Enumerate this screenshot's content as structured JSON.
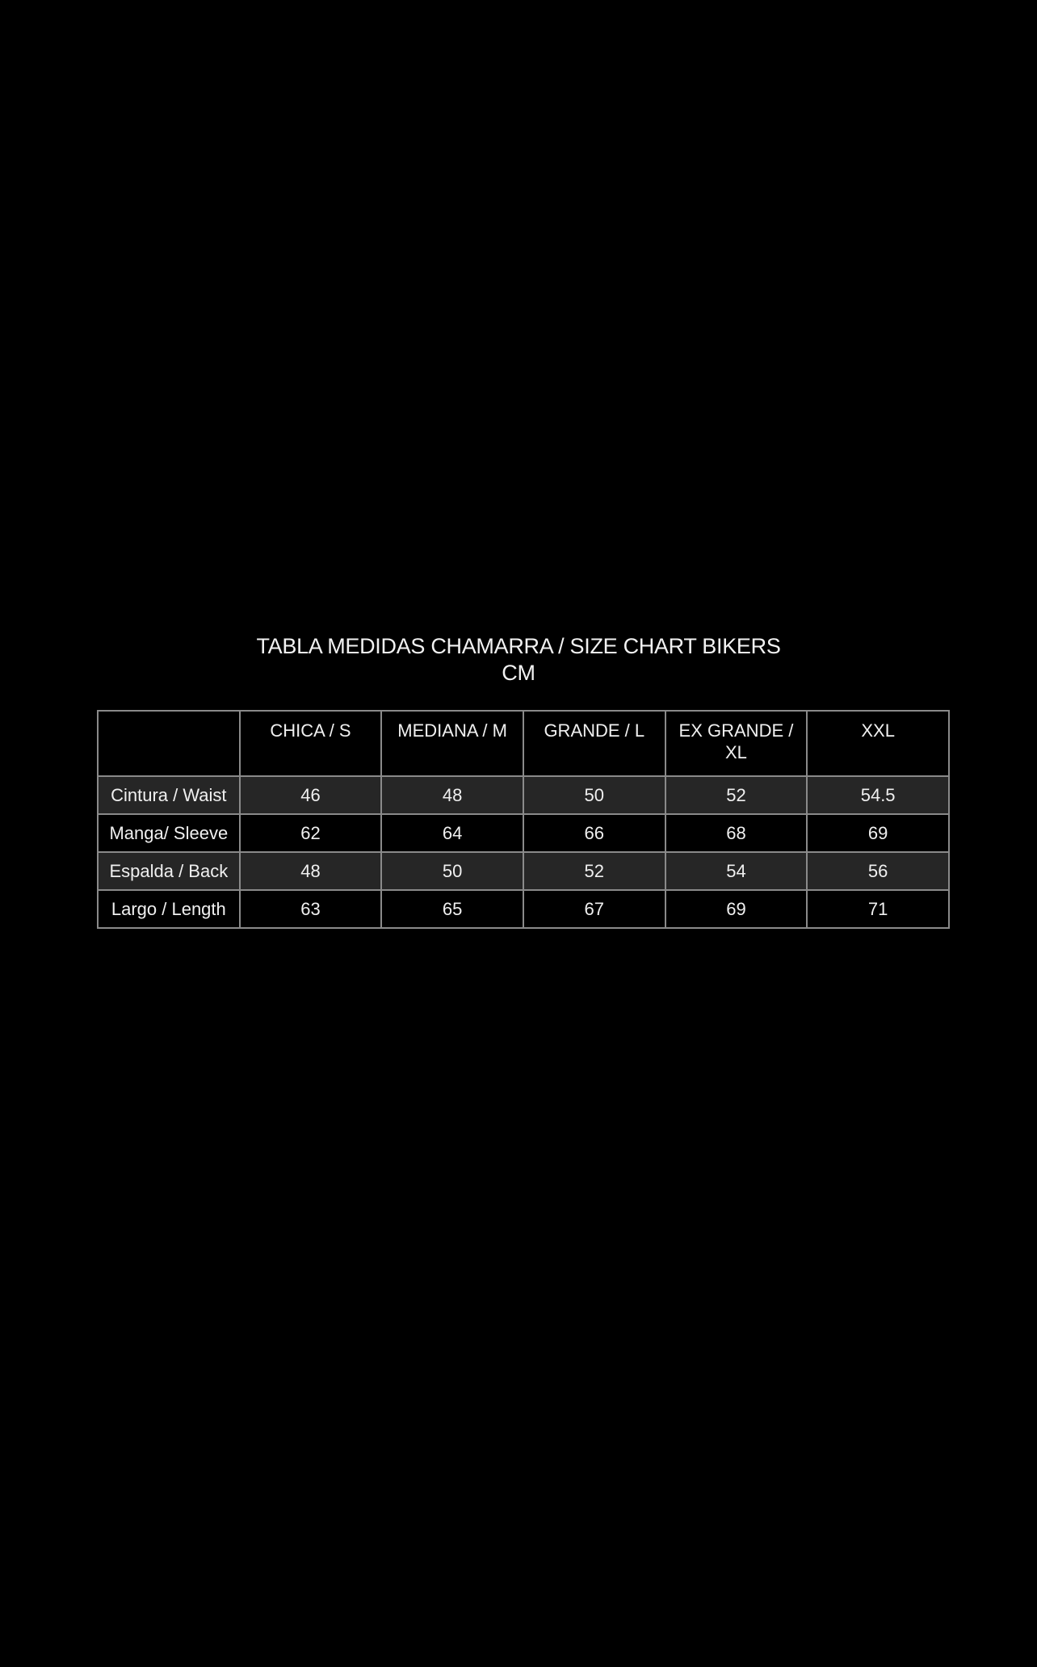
{
  "title": {
    "line1": "TABLA MEDIDAS CHAMARRA / SIZE CHART BIKERS",
    "line2": "CM"
  },
  "table": {
    "headers": [
      "",
      "CHICA / S",
      "MEDIANA / M",
      "GRANDE / L",
      "EX GRANDE / XL",
      "XXL"
    ],
    "rows": [
      {
        "label": "Cintura / Waist",
        "values": [
          "46",
          "48",
          "50",
          "52",
          "54.5"
        ]
      },
      {
        "label": "Manga/ Sleeve",
        "values": [
          "62",
          "64",
          "66",
          "68",
          "69"
        ]
      },
      {
        "label": "Espalda / Back",
        "values": [
          "48",
          "50",
          "52",
          "54",
          "56"
        ]
      },
      {
        "label": "Largo / Length",
        "values": [
          "63",
          "65",
          "67",
          "69",
          "71"
        ]
      }
    ]
  },
  "colors": {
    "background": "#000000",
    "row_shade": "#262626",
    "border": "#8a8a8a"
  }
}
